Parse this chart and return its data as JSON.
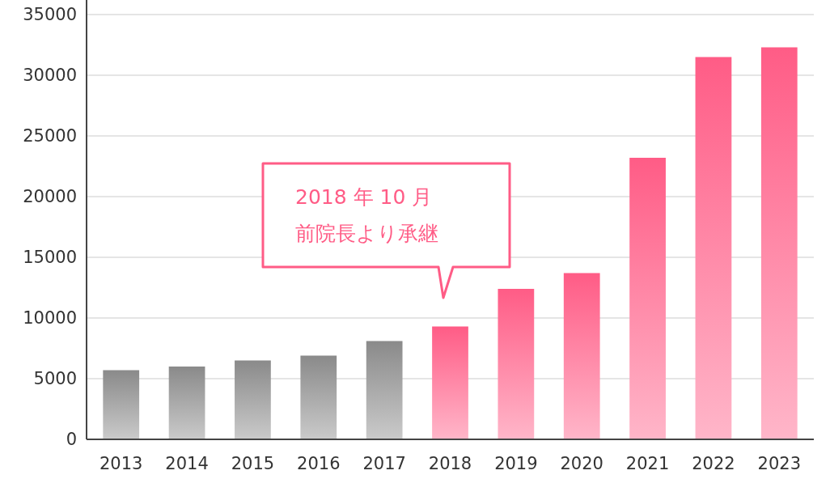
{
  "chart_data": {
    "type": "bar",
    "categories": [
      "2013",
      "2014",
      "2015",
      "2016",
      "2017",
      "2018",
      "2019",
      "2020",
      "2021",
      "2022",
      "2023"
    ],
    "values": [
      5700,
      6000,
      6500,
      6900,
      8100,
      9300,
      12400,
      13700,
      23200,
      31500,
      32300
    ],
    "colors": [
      "#8a8a8a",
      "#8a8a8a",
      "#8a8a8a",
      "#8a8a8a",
      "#8a8a8a",
      "#ff5c86",
      "#ff5c86",
      "#ff5c86",
      "#ff5c86",
      "#ff5c86",
      "#ff5c86"
    ],
    "ylim": [
      0,
      35000
    ],
    "yticks": [
      0,
      5000,
      10000,
      15000,
      20000,
      25000,
      30000,
      35000
    ],
    "grid": "y",
    "annotations": [
      "2018 年 10 月",
      "前院長より承継"
    ]
  }
}
